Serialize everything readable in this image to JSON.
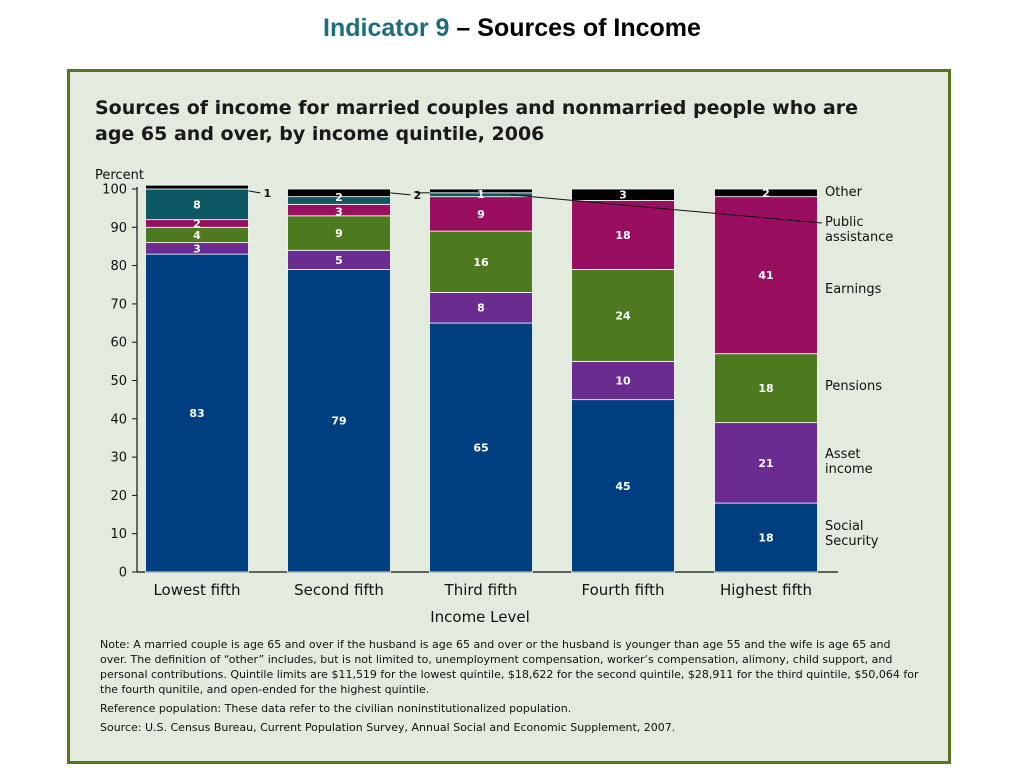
{
  "slide": {
    "title_indicator": "Indicator 9",
    "title_rest": " – Sources of Income"
  },
  "colors": {
    "social_security": "#003f7f",
    "asset_income": "#6a2c91",
    "pensions": "#4e7a1f",
    "earnings": "#990e5e",
    "public_assistance": "#0c5763",
    "other": "#000000",
    "panel_bg": "#e3ebde",
    "panel_border": "#56751f",
    "accent": "#1d6e7a"
  },
  "chart_data": {
    "type": "bar",
    "stacked": true,
    "title": "Sources of income for married couples and nonmarried people who are age 65 and over, by income quintile, 2006",
    "title_lines": [
      "Sources of income for married couples and nonmarried people who are",
      "age 65 and over, by income quintile, 2006"
    ],
    "ylabel": "Percent",
    "xlabel": "Income Level",
    "ylim": [
      0,
      100
    ],
    "yticks": [
      0,
      10,
      20,
      30,
      40,
      50,
      60,
      70,
      80,
      90,
      100
    ],
    "categories": [
      "Lowest fifth",
      "Second fifth",
      "Third fifth",
      "Fourth fifth",
      "Highest fifth"
    ],
    "series": [
      {
        "name": "Social Security",
        "label_lines": [
          "Social",
          "Security"
        ],
        "color": "#003f7f",
        "values": [
          83,
          79,
          65,
          45,
          18
        ]
      },
      {
        "name": "Asset income",
        "label_lines": [
          "Asset",
          "income"
        ],
        "color": "#6a2c91",
        "values": [
          3,
          5,
          8,
          10,
          21
        ]
      },
      {
        "name": "Pensions",
        "label_lines": [
          "Pensions"
        ],
        "color": "#4e7a1f",
        "values": [
          4,
          9,
          16,
          24,
          18
        ]
      },
      {
        "name": "Earnings",
        "label_lines": [
          "Earnings"
        ],
        "color": "#990e5e",
        "values": [
          2,
          3,
          9,
          18,
          41
        ]
      },
      {
        "name": "Public assistance",
        "label_lines": [
          "Public",
          "assistance"
        ],
        "color": "#0c5763",
        "values": [
          8,
          2,
          1,
          0,
          0
        ]
      },
      {
        "name": "Other",
        "label_lines": [
          "Other"
        ],
        "color": "#000000",
        "values": [
          1,
          2,
          1,
          3,
          2
        ]
      }
    ],
    "data_labels": [
      [
        "83",
        "3",
        "4",
        "2",
        "8",
        "1"
      ],
      [
        "79",
        "5",
        "9",
        "3",
        "2",
        "2"
      ],
      [
        "65",
        "8",
        "16",
        "9",
        "1",
        ""
      ],
      [
        "45",
        "10",
        "24",
        "18",
        "",
        "3"
      ],
      [
        "18",
        "21",
        "18",
        "41",
        "",
        "2"
      ]
    ],
    "legend_position": "right",
    "grid": false
  },
  "notes": {
    "note": "Note: A married couple is age 65 and over if the husband is age 65 and over or the husband is younger than age 55 and the wife is age 65 and over. The definition of “other” includes, but is not limited to, unemployment compensation, worker’s compensation, alimony, child support, and personal contributions. Quintile limits are $11,519 for the lowest quintile, $18,622 for the second quintile, $28,911 for the third quintile, $50,064 for the fourth qunitile, and open-ended for the highest quintile.",
    "reference": "Reference population: These data refer to the civilian noninstitutionalized population.",
    "source": "Source: U.S. Census Bureau, Current Population Survey, Annual Social and Economic Supplement, 2007."
  }
}
